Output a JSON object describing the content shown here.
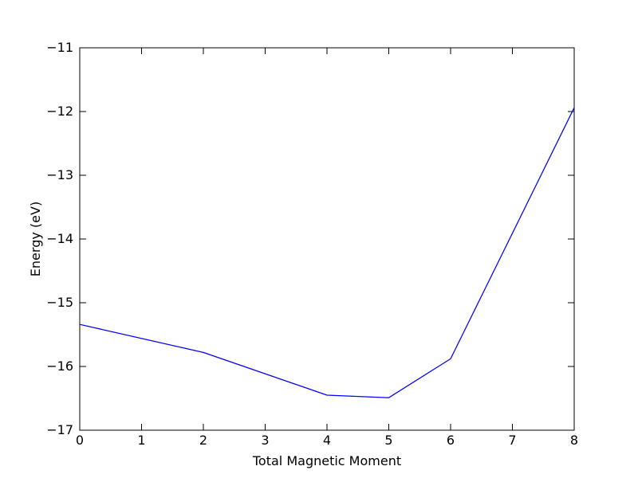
{
  "chart_data": {
    "type": "line",
    "title": "",
    "xlabel": "Total Magnetic Moment",
    "ylabel": "Energy (eV)",
    "xlim": [
      0,
      8
    ],
    "ylim": [
      -17,
      -11
    ],
    "xticks": [
      0,
      1,
      2,
      3,
      4,
      5,
      6,
      7,
      8
    ],
    "yticks": [
      -17,
      -16,
      -15,
      -14,
      -13,
      -12,
      -11
    ],
    "xtick_labels": [
      "0",
      "1",
      "2",
      "3",
      "4",
      "5",
      "6",
      "7",
      "8"
    ],
    "ytick_labels": [
      "−17",
      "−16",
      "−15",
      "−14",
      "−13",
      "−12",
      "−11"
    ],
    "grid": false,
    "legend": "none",
    "series": [
      {
        "color": "#0000ff",
        "x": [
          0,
          2,
          4,
          5,
          6,
          8
        ],
        "y": [
          -15.34,
          -15.78,
          -16.45,
          -16.49,
          -15.88,
          -11.94
        ]
      }
    ]
  }
}
